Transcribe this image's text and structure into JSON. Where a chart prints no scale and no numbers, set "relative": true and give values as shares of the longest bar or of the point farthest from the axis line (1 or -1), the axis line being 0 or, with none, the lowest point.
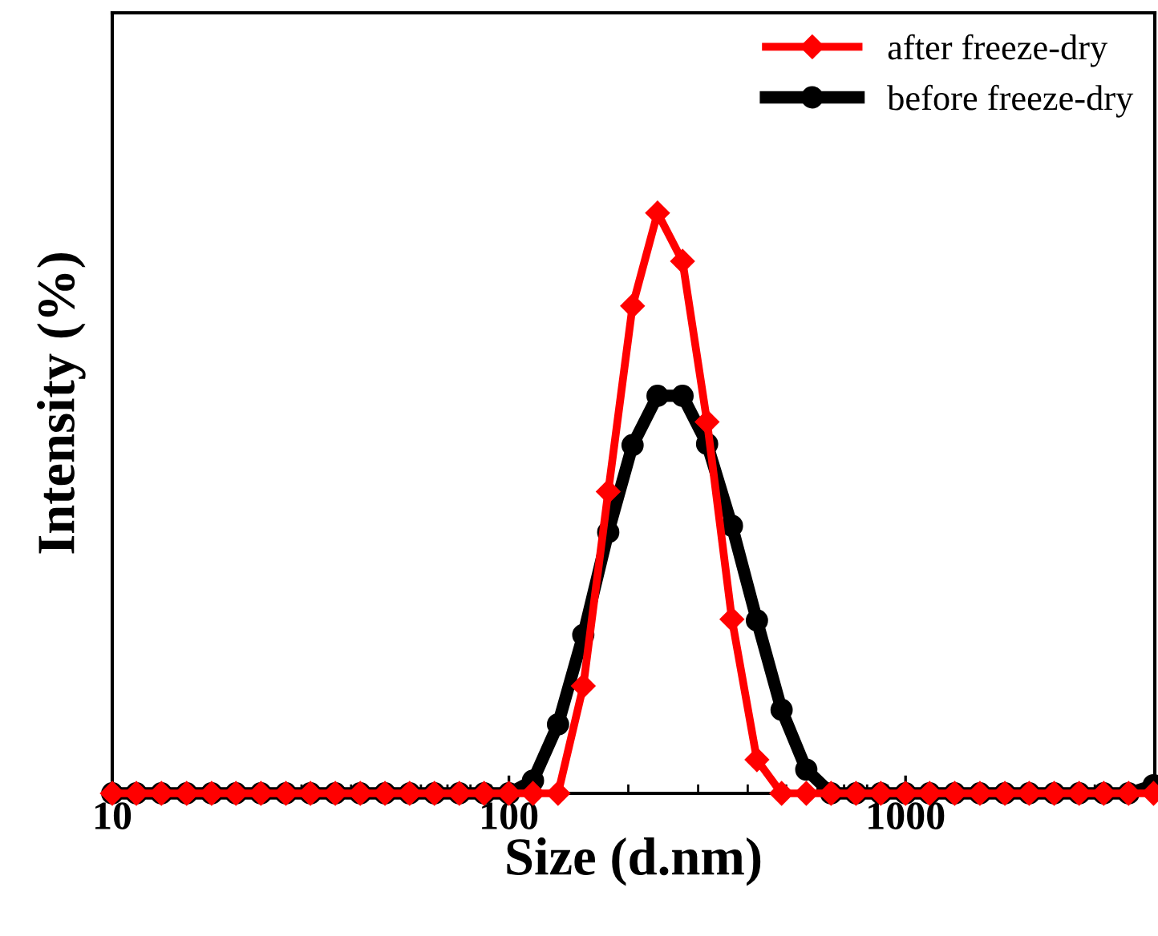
{
  "chart_data": {
    "type": "line",
    "xlabel": "Size (d.nm)",
    "ylabel": "Intensity (%)",
    "relative": true,
    "log": "x",
    "x": [
      10,
      11.5,
      13.3,
      15.4,
      17.8,
      20.5,
      23.7,
      27.4,
      31.6,
      36.5,
      42.2,
      48.7,
      56.2,
      64.9,
      75,
      86.6,
      100,
      115,
      133,
      154,
      178,
      205,
      237,
      274,
      316,
      365,
      422,
      487,
      562,
      649,
      750,
      866,
      1000,
      1150,
      1330,
      1540,
      1780,
      2050,
      2370,
      2740,
      3160,
      3650,
      4220
    ],
    "series": [
      {
        "name": "after freeze-dry",
        "color": "#ff0000",
        "marker": "diamond",
        "values": [
          0,
          0,
          0,
          0,
          0,
          0,
          0,
          0,
          0,
          0,
          0,
          0,
          0,
          0,
          0,
          0,
          0,
          0,
          0,
          0.185,
          0.52,
          0.84,
          1,
          0.917,
          0.64,
          0.3,
          0.058,
          0,
          0,
          0,
          0,
          0,
          0,
          0,
          0,
          0,
          0,
          0,
          0,
          0,
          0,
          0,
          0
        ]
      },
      {
        "name": "before freeze-dry",
        "color": "#000000",
        "marker": "circle",
        "values": [
          0,
          0,
          0,
          0,
          0,
          0,
          0,
          0,
          0,
          0,
          0,
          0,
          0,
          0,
          0,
          0,
          0,
          0.022,
          0.119,
          0.273,
          0.45,
          0.6,
          0.685,
          0.685,
          0.602,
          0.461,
          0.298,
          0.144,
          0.041,
          0,
          0,
          0,
          0,
          0,
          0,
          0,
          0,
          0,
          0,
          0,
          0,
          0,
          0.014
        ]
      }
    ],
    "xlim": [
      10,
      4250
    ],
    "xticks": [
      10,
      100,
      1000
    ],
    "legend": "top right",
    "grid": false,
    "line_style": "solid"
  }
}
